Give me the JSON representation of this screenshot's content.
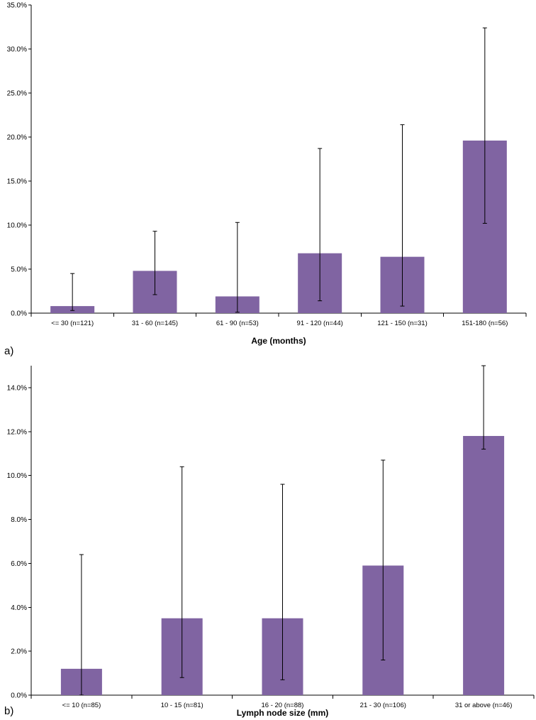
{
  "chart_data": [
    {
      "type": "bar",
      "panel_label": "a)",
      "xlabel": "Age (months)",
      "ylabel": "",
      "ylim": [
        0,
        35
      ],
      "yticks": [
        0,
        5,
        10,
        15,
        20,
        25,
        30,
        35
      ],
      "ytick_labels": [
        "0.0%",
        "5.0%",
        "10.0%",
        "15.0%",
        "20.0%",
        "25.0%",
        "30.0%",
        "35.0%"
      ],
      "categories": [
        "<= 30 (n=121)",
        "31 - 60 (n=145)",
        "61 - 90 (n=53)",
        "91 - 120 (n=44)",
        "121 - 150 (n=31)",
        "151-180 (n=56)"
      ],
      "values": [
        0.8,
        4.8,
        1.9,
        6.8,
        6.4,
        19.6
      ],
      "error_low": [
        0.3,
        2.1,
        0.1,
        1.4,
        0.8,
        10.2
      ],
      "error_high": [
        4.5,
        9.3,
        10.3,
        18.7,
        21.4,
        32.4
      ],
      "bar_color": "#8064a2",
      "grid": false
    },
    {
      "type": "bar",
      "panel_label": "b)",
      "xlabel": "Lymph node size (mm)",
      "ylabel": "",
      "ylim": [
        0,
        15
      ],
      "yticks": [
        0,
        2,
        4,
        6,
        8,
        10,
        12,
        14
      ],
      "ytick_labels": [
        "0.0%",
        "2.0%",
        "4.0%",
        "6.0%",
        "8.0%",
        "10.0%",
        "12.0%",
        "14.0%"
      ],
      "categories": [
        "<= 10 (n=85)",
        "10 - 15 (n=81)",
        "16 - 20 (n=88)",
        "21 - 30 (n=106)",
        "31 or above (n=46)"
      ],
      "values": [
        1.2,
        3.5,
        3.5,
        5.9,
        11.8
      ],
      "error_low": [
        0.0,
        0.8,
        0.7,
        1.6,
        11.2
      ],
      "error_high": [
        6.4,
        10.4,
        9.6,
        10.7,
        15.0
      ],
      "bar_color": "#8064a2",
      "grid": false
    }
  ]
}
